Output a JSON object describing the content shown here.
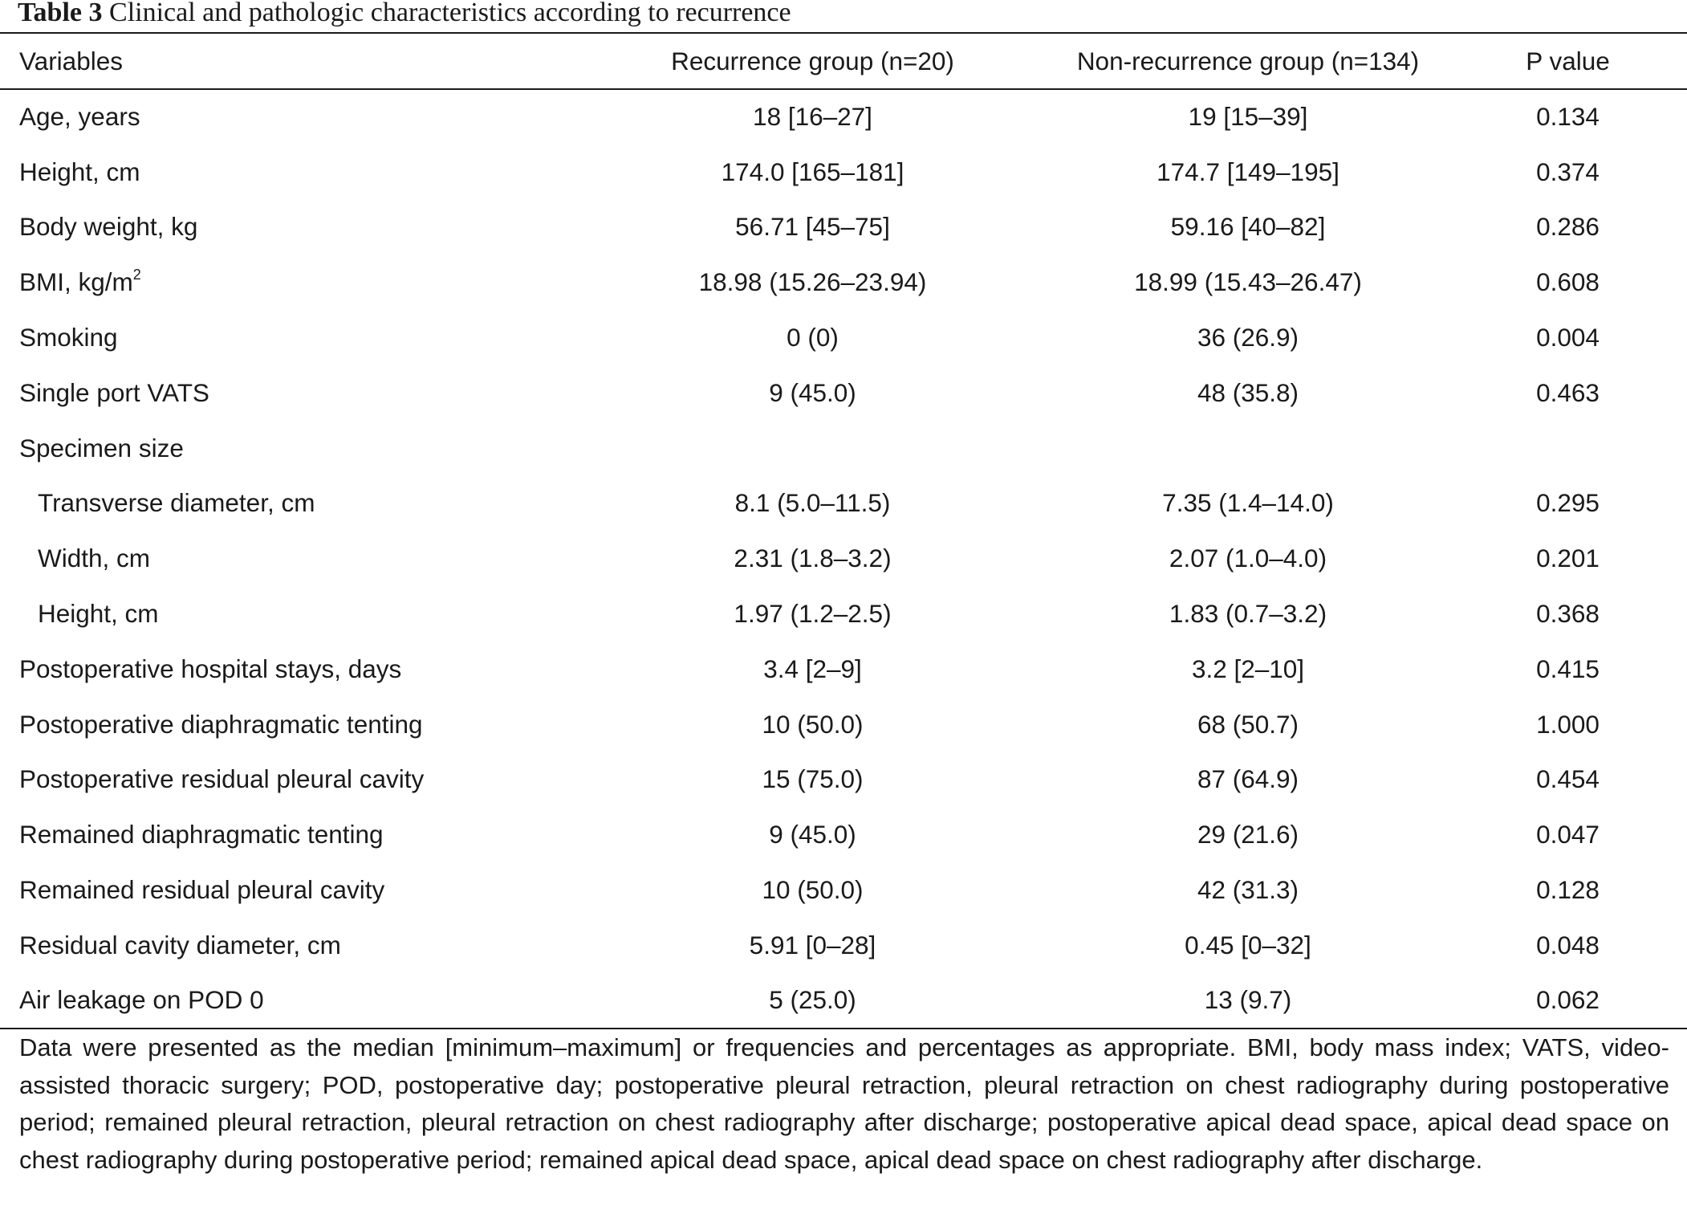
{
  "caption": {
    "label": "Table 3",
    "text": "Clinical and pathologic characteristics according to recurrence"
  },
  "headers": {
    "variables": "Variables",
    "recurrence": "Recurrence group (n=20)",
    "non_recurrence": "Non-recurrence group (n=134)",
    "p_value": "P value"
  },
  "rows": [
    {
      "variable": "Age, years",
      "recurrence": "18 [16–27]",
      "non_recurrence": "19 [15–39]",
      "p": "0.134"
    },
    {
      "variable": "Height, cm",
      "recurrence": "174.0 [165–181]",
      "non_recurrence": "174.7 [149–195]",
      "p": "0.374"
    },
    {
      "variable": "Body weight, kg",
      "recurrence": "56.71 [45–75]",
      "non_recurrence": "59.16 [40–82]",
      "p": "0.286"
    },
    {
      "variable": "BMI, kg/m",
      "sup": "2",
      "recurrence": "18.98 (15.26–23.94)",
      "non_recurrence": "18.99 (15.43–26.47)",
      "p": "0.608"
    },
    {
      "variable": "Smoking",
      "recurrence": "0 (0)",
      "non_recurrence": "36 (26.9)",
      "p": "0.004"
    },
    {
      "variable": "Single port VATS",
      "recurrence": "9 (45.0)",
      "non_recurrence": "48 (35.8)",
      "p": "0.463"
    },
    {
      "variable": "Specimen size",
      "recurrence": "",
      "non_recurrence": "",
      "p": ""
    },
    {
      "variable": "Transverse diameter, cm",
      "recurrence": "8.1 (5.0–11.5)",
      "non_recurrence": "7.35 (1.4–14.0)",
      "p": "0.295"
    },
    {
      "variable": "Width, cm",
      "recurrence": "2.31 (1.8–3.2)",
      "non_recurrence": "2.07 (1.0–4.0)",
      "p": "0.201"
    },
    {
      "variable": "Height, cm",
      "recurrence": "1.97 (1.2–2.5)",
      "non_recurrence": "1.83 (0.7–3.2)",
      "p": "0.368"
    },
    {
      "variable": "Postoperative hospital stays, days",
      "recurrence": "3.4 [2–9]",
      "non_recurrence": "3.2 [2–10]",
      "p": "0.415"
    },
    {
      "variable": "Postoperative diaphragmatic tenting",
      "recurrence": "10 (50.0)",
      "non_recurrence": "68 (50.7)",
      "p": "1.000"
    },
    {
      "variable": "Postoperative residual pleural cavity",
      "recurrence": "15 (75.0)",
      "non_recurrence": "87 (64.9)",
      "p": "0.454"
    },
    {
      "variable": "Remained diaphragmatic tenting",
      "recurrence": "9 (45.0)",
      "non_recurrence": "29 (21.6)",
      "p": "0.047"
    },
    {
      "variable": "Remained residual pleural cavity",
      "recurrence": "10 (50.0)",
      "non_recurrence": "42 (31.3)",
      "p": "0.128"
    },
    {
      "variable": "Residual cavity diameter, cm",
      "recurrence": "5.91 [0–28]",
      "non_recurrence": "0.45 [0–32]",
      "p": "0.048"
    },
    {
      "variable": "Air leakage on POD 0",
      "recurrence": "5 (25.0)",
      "non_recurrence": "13 (9.7)",
      "p": "0.062"
    }
  ],
  "footnote": "Data were presented as the median [minimum–maximum] or frequencies and percentages as appropriate. BMI, body mass index; VATS, video-assisted thoracic surgery; POD, postoperative day; postoperative pleural retraction, pleural retraction on chest radiography during postoperative period; remained pleural retraction, pleural retraction on chest radiography after discharge; postoperative apical dead space, apical dead space on chest radiography during postoperative period; remained apical dead space, apical dead space on chest radiography after discharge."
}
